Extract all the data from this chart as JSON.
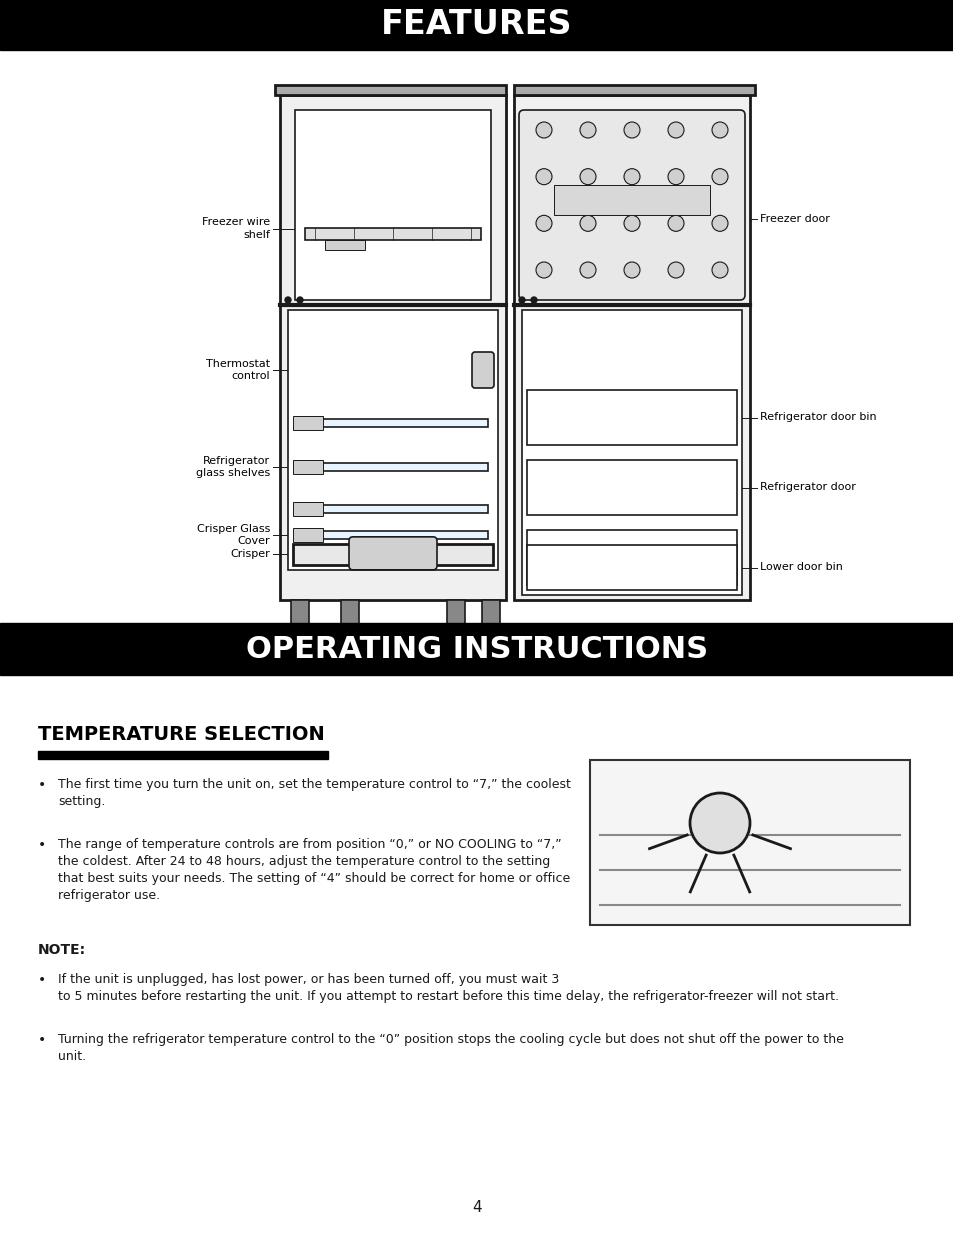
{
  "page_bg": "#ffffff",
  "header1_text": "FEATURES",
  "header1_bg": "#000000",
  "header1_color": "#ffffff",
  "header2_text": "OPERATING INSTRUCTIONS",
  "header2_bg": "#000000",
  "header2_color": "#ffffff",
  "section_title": "TEMPERATURE SELECTION",
  "section_title_color": "#000000",
  "section_underline_color": "#000000",
  "body_text_color": "#000000",
  "bullet1": "The first time you turn the unit on, set the temperature control to “7,” the coolest\nsetting.",
  "bullet2": "The range of temperature controls are from position “0,” or NO COOLING to “7,”\nthe coldest. After 24 to 48 hours, adjust the temperature control to the setting\nthat best suits your needs. The setting of “4” should be correct for home or office\nrefrigerator use.",
  "note_label": "NOTE:",
  "note1": "If the unit is unplugged, has lost power, or has been turned off, you must wait 3\nto 5 minutes before restarting the unit. If you attempt to restart before this time delay, the refrigerator-freezer will not start.",
  "note2": "Turning the refrigerator temperature control to the “0” position stops the cooling cycle but does not shut off the power to the\nunit.",
  "page_number": "4"
}
